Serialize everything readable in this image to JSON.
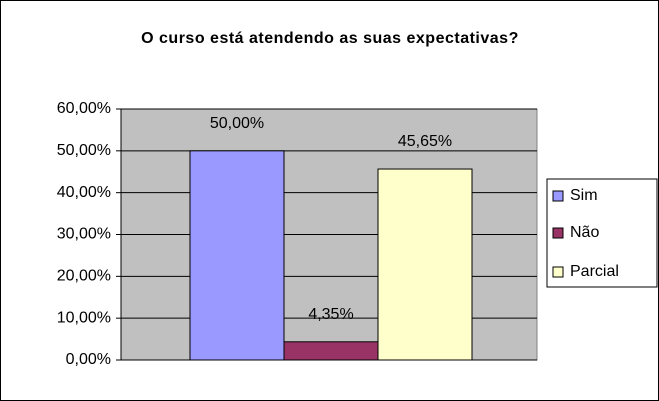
{
  "chart_data": {
    "type": "bar",
    "title": "O curso está atendendo as suas expectativas?",
    "categories": [
      null
    ],
    "series": [
      {
        "name": "Sim",
        "color": "#9999ff",
        "values": [
          50
        ],
        "value_labels": [
          "50,00%"
        ]
      },
      {
        "name": "Não",
        "color": "#993366",
        "values": [
          4.35
        ],
        "value_labels": [
          "4,35%"
        ]
      },
      {
        "name": "Parcial",
        "color": "#ffffcc",
        "values": [
          45.65
        ],
        "value_labels": [
          "45,65%"
        ]
      }
    ],
    "ylim": [
      0,
      60
    ],
    "yticks": [
      {
        "value": 0,
        "label": "0,00%"
      },
      {
        "value": 10,
        "label": "10,00%"
      },
      {
        "value": 20,
        "label": "20,00%"
      },
      {
        "value": 30,
        "label": "30,00%"
      },
      {
        "value": 40,
        "label": "40,00%"
      },
      {
        "value": 50,
        "label": "50,00%"
      },
      {
        "value": 60,
        "label": "60,00%"
      }
    ],
    "grid": true,
    "legend": "right",
    "plot_background": "#c0c0c0"
  }
}
